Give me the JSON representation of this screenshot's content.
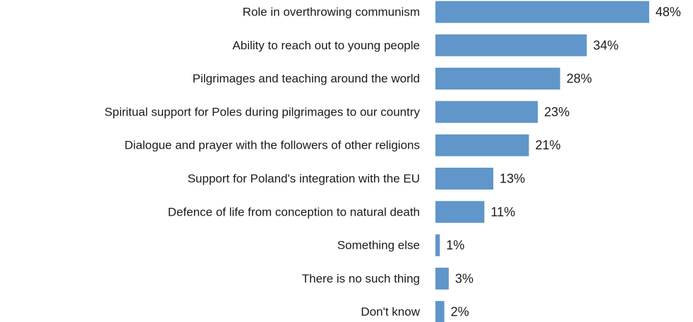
{
  "chart_data": {
    "type": "bar",
    "orientation": "horizontal",
    "categories": [
      "Role in overthrowing communism",
      "Ability to reach out to young people",
      "Pilgrimages and teaching around the world",
      "Spiritual support for Poles during pilgrimages to our country",
      "Dialogue and prayer with the followers of other religions",
      "Support for Poland's integration with the EU",
      "Defence of life from conception to natural death",
      "Something else",
      "There is no such thing",
      "Don't know"
    ],
    "values": [
      48,
      34,
      28,
      23,
      21,
      13,
      11,
      1,
      3,
      2
    ],
    "value_labels": [
      "48%",
      "34%",
      "28%",
      "23%",
      "21%",
      "13%",
      "11%",
      "1%",
      "3%",
      "2%"
    ],
    "unit": "%",
    "title": "",
    "xlabel": "",
    "ylabel": "",
    "xlim": [
      0,
      48
    ],
    "grid": false,
    "legend": "none",
    "bar_color": "#6096C9"
  }
}
